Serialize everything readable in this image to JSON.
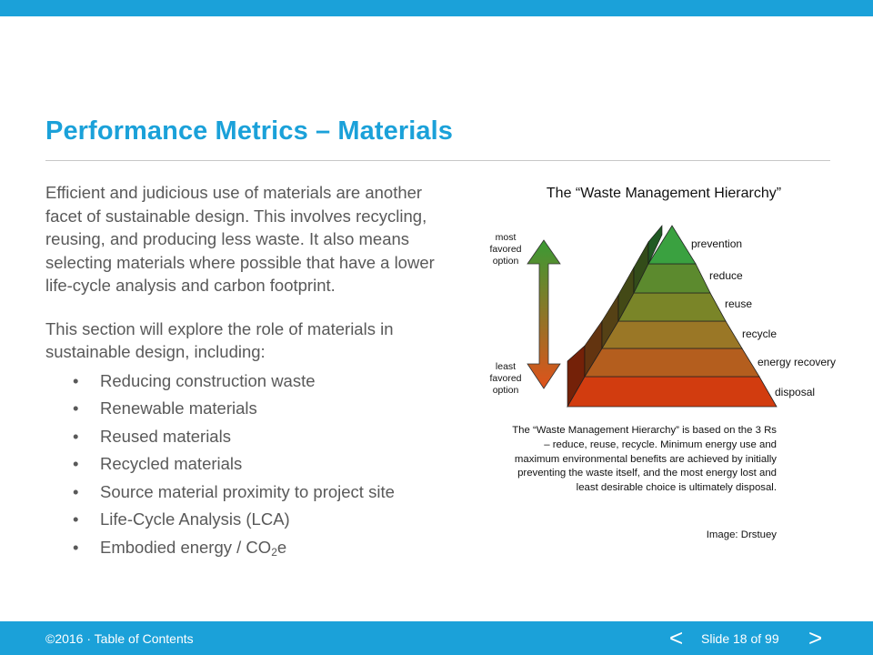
{
  "slide": {
    "title": "Performance Metrics – Materials",
    "paragraph_1": "Efficient and judicious use of materials are another facet of sustainable design. This involves recycling, reusing, and producing less waste. It also means selecting materials where possible that have a lower life-cycle analysis and carbon footprint.",
    "paragraph_2": "This section will explore the role of materials in sustainable design, including:",
    "bullet_char": "•",
    "bullets": [
      "Reducing construction waste",
      "Renewable materials",
      "Reused materials",
      "Recycled materials",
      "Source material proximity to project site",
      "Life-Cycle Analysis (LCA)"
    ],
    "last_bullet": {
      "prefix": "Embodied  energy / CO",
      "subscript": "2",
      "suffix": "e"
    }
  },
  "figure": {
    "title": "The “Waste Management Hierarchy”",
    "arrow_top_label": [
      "most",
      "favored",
      "option"
    ],
    "arrow_bottom_label": [
      "least",
      "favored",
      "option"
    ],
    "tiers": [
      {
        "label": "prevention",
        "color": "#3aa140"
      },
      {
        "label": "reduce",
        "color": "#5c8a2e"
      },
      {
        "label": "reuse",
        "color": "#7a8528"
      },
      {
        "label": "recycle",
        "color": "#9a7726"
      },
      {
        "label": "energy recovery",
        "color": "#b45e1e"
      },
      {
        "label": "disposal",
        "color": "#d23c0f"
      }
    ],
    "caption": "The “Waste Management Hierarchy” is based on the 3 Rs – reduce, reuse, recycle. Minimum energy use and maximum environmental  benefits are achieved  by initially preventing  the waste itself, and the most energy lost and least desirable choice is ultimately disposal.",
    "credit": "Image: Drstuey"
  },
  "footer": {
    "copyright": "©2016",
    "separator": " · ",
    "toc_link": "Table of Contents",
    "prev_glyph": "<",
    "slide_label": "Slide 18 of 99",
    "next_glyph": ">"
  },
  "colors": {
    "accent": "#1ba1d9",
    "body_text": "#595959",
    "arrow_top": "#3a9a34",
    "arrow_bottom": "#e0521b"
  }
}
